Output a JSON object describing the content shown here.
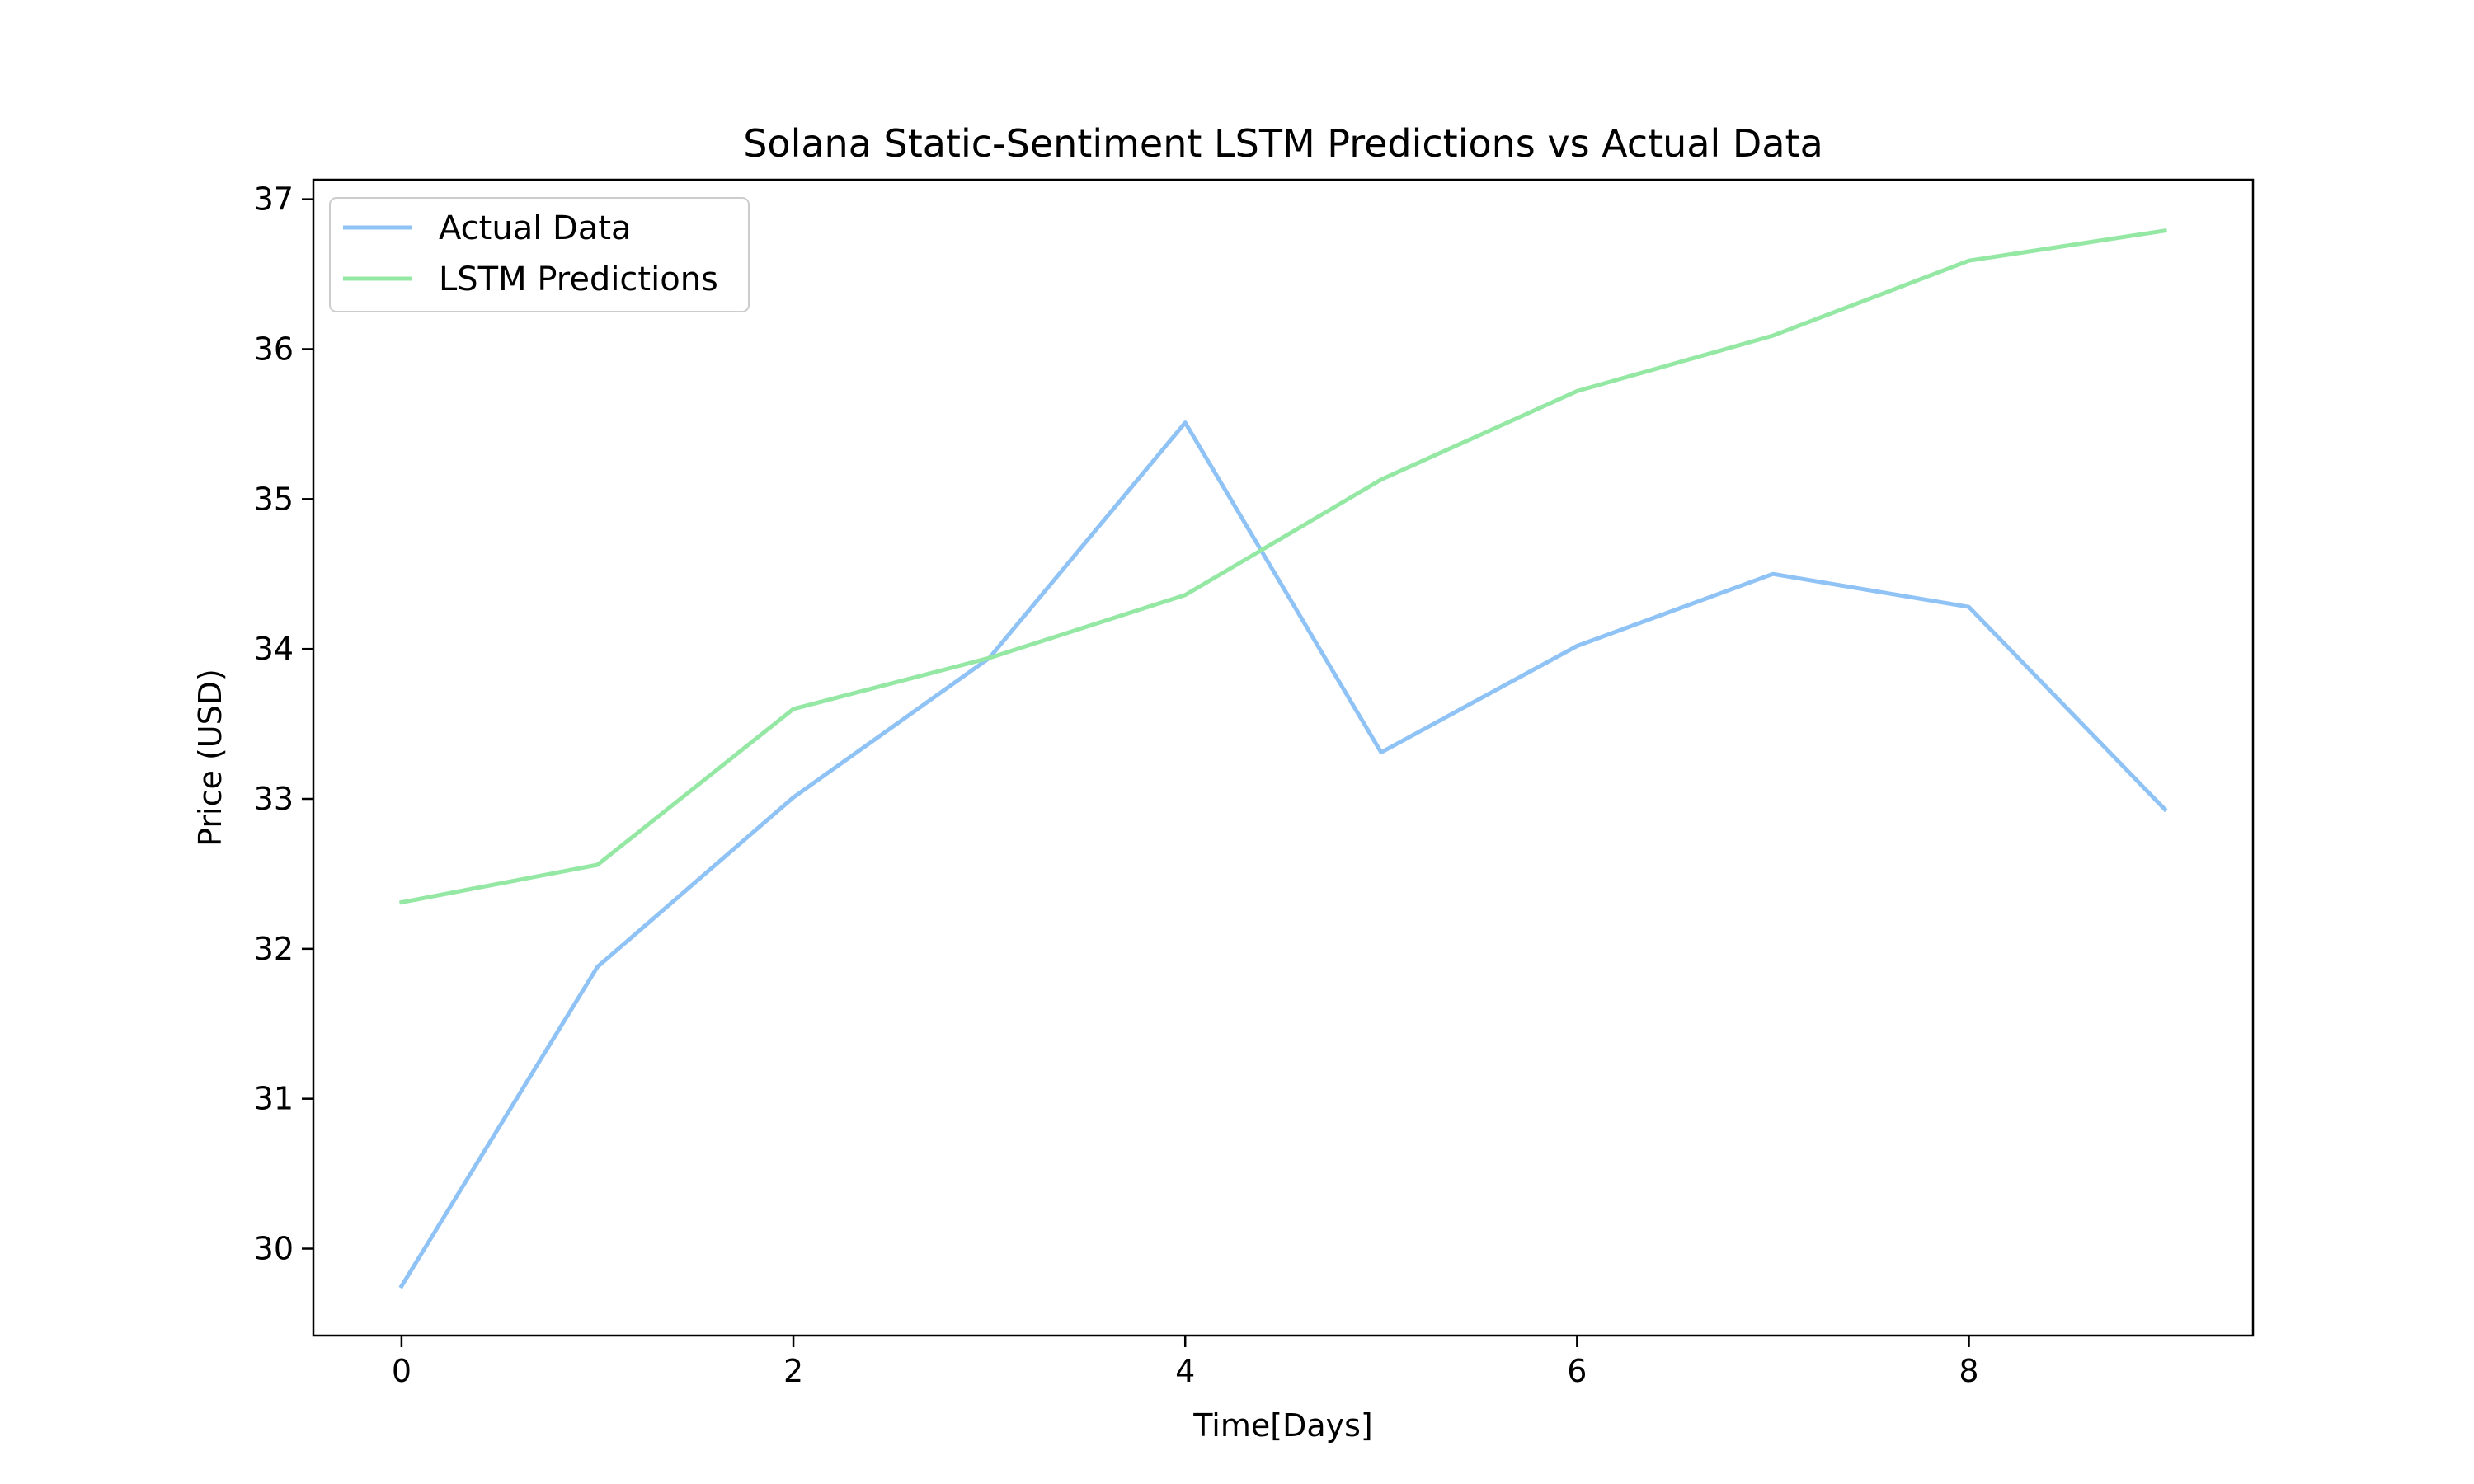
{
  "chart_data": {
    "type": "line",
    "title": "Solana Static-Sentiment LSTM Predictions vs Actual Data",
    "xlabel": "Time[Days]",
    "ylabel": "Price (USD)",
    "x": [
      0,
      1,
      2,
      3,
      4,
      5,
      6,
      7,
      8,
      9
    ],
    "xlim": [
      -0.45,
      9.45
    ],
    "ylim": [
      29.42,
      37.13
    ],
    "xticks": [
      0,
      2,
      4,
      6,
      8
    ],
    "yticks": [
      30,
      31,
      32,
      33,
      34,
      35,
      36,
      37
    ],
    "grid": false,
    "legend_position": "upper-left",
    "series": [
      {
        "name": "Actual Data",
        "color": "#90c3f5",
        "values": [
          29.75,
          31.88,
          33.01,
          33.94,
          35.51,
          33.31,
          34.02,
          34.5,
          34.28,
          32.93
        ]
      },
      {
        "name": "LSTM Predictions",
        "color": "#94e8a4",
        "values": [
          32.31,
          32.56,
          33.6,
          33.94,
          34.36,
          35.13,
          35.72,
          36.09,
          36.59,
          36.79
        ]
      }
    ]
  }
}
